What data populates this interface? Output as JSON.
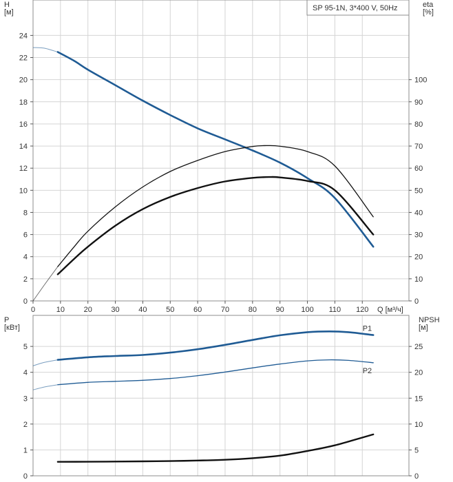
{
  "legend_box_text": "SP 95-1N, 3*400 V, 50Hz",
  "colors": {
    "blue": "#1f5b94",
    "black": "#111111",
    "grid": "#d4d4d4"
  },
  "chart_data": [
    {
      "id": "top",
      "type": "line",
      "title": "",
      "xlabel": "Q [м³/ч]",
      "ylabel_left": "H\n[м]",
      "ylabel_right": "eta\n[%]",
      "xlim": [
        0,
        137
      ],
      "ylim_left": [
        0,
        27.2
      ],
      "ylim_right": [
        0,
        136
      ],
      "xticks": [
        0,
        10,
        20,
        30,
        40,
        50,
        60,
        70,
        80,
        90,
        100,
        110,
        120
      ],
      "yticks_left": [
        0,
        2,
        4,
        6,
        8,
        10,
        12,
        14,
        16,
        18,
        20,
        22,
        24
      ],
      "yticks_right": [
        0,
        10,
        20,
        30,
        40,
        50,
        60,
        70,
        80,
        90,
        100
      ],
      "grid": true,
      "series": [
        {
          "axis": "left",
          "color": "blue",
          "width": 2.6,
          "x": [
            9,
            15,
            20,
            30,
            40,
            50,
            60,
            70,
            80,
            90,
            100,
            110,
            124
          ],
          "y": [
            22.5,
            21.7,
            20.9,
            19.5,
            18.1,
            16.8,
            15.6,
            14.6,
            13.6,
            12.5,
            11.1,
            9.3,
            4.9
          ],
          "lead": {
            "x": [
              0,
              4,
              9
            ],
            "y": [
              22.9,
              22.85,
              22.5
            ]
          }
        },
        {
          "axis": "right",
          "color": "black",
          "width": 1.3,
          "x": [
            9,
            15,
            20,
            30,
            40,
            50,
            60,
            70,
            80,
            85,
            90,
            100,
            110,
            124
          ],
          "y": [
            15.5,
            24.5,
            31.5,
            42.5,
            51.5,
            58.5,
            63.5,
            67.5,
            69.8,
            70.2,
            69.9,
            67.5,
            61,
            38
          ],
          "lead": {
            "x": [
              0,
              4,
              9
            ],
            "y": [
              0,
              7,
              15.5
            ]
          }
        },
        {
          "axis": "right",
          "color": "black",
          "width": 2.4,
          "x": [
            9,
            15,
            20,
            30,
            40,
            50,
            60,
            70,
            80,
            86,
            90,
            100,
            110,
            124
          ],
          "y": [
            12,
            19,
            24.5,
            34,
            41.5,
            47,
            51,
            54,
            55.6,
            56,
            55.8,
            54.2,
            50,
            30
          ]
        }
      ]
    },
    {
      "id": "bottom",
      "type": "line",
      "title": "",
      "xlabel": "",
      "ylabel_left": "P\n[кВт]",
      "ylabel_right": "NPSH\n[м]",
      "xlim": [
        0,
        137
      ],
      "ylim_left": [
        0,
        6.2
      ],
      "ylim_right": [
        0,
        31
      ],
      "yticks_left": [
        0,
        1,
        2,
        3,
        4,
        5
      ],
      "yticks_right": [
        0,
        5,
        10,
        15,
        20,
        25
      ],
      "grid": true,
      "series": [
        {
          "name": "P1",
          "axis": "left",
          "color": "blue",
          "width": 2.6,
          "x": [
            9,
            20,
            30,
            40,
            50,
            60,
            70,
            80,
            90,
            100,
            108,
            115,
            124
          ],
          "y": [
            4.48,
            4.58,
            4.63,
            4.67,
            4.76,
            4.89,
            5.06,
            5.25,
            5.43,
            5.55,
            5.58,
            5.55,
            5.44
          ],
          "lead": {
            "x": [
              0,
              4,
              9
            ],
            "y": [
              4.25,
              4.38,
              4.48
            ]
          }
        },
        {
          "name": "P2",
          "axis": "left",
          "color": "blue",
          "width": 1.3,
          "x": [
            9,
            20,
            30,
            40,
            50,
            60,
            70,
            80,
            90,
            100,
            108,
            115,
            124
          ],
          "y": [
            3.52,
            3.61,
            3.65,
            3.69,
            3.76,
            3.87,
            4.01,
            4.17,
            4.32,
            4.44,
            4.48,
            4.46,
            4.37
          ],
          "lead": {
            "x": [
              0,
              4,
              9
            ],
            "y": [
              3.32,
              3.43,
              3.52
            ]
          }
        },
        {
          "axis": "right",
          "color": "black",
          "width": 2.4,
          "x": [
            9,
            20,
            30,
            40,
            50,
            60,
            70,
            80,
            90,
            100,
            110,
            124
          ],
          "y": [
            2.7,
            2.72,
            2.75,
            2.8,
            2.85,
            2.95,
            3.1,
            3.4,
            3.9,
            4.8,
            5.9,
            8.0
          ]
        }
      ]
    }
  ]
}
